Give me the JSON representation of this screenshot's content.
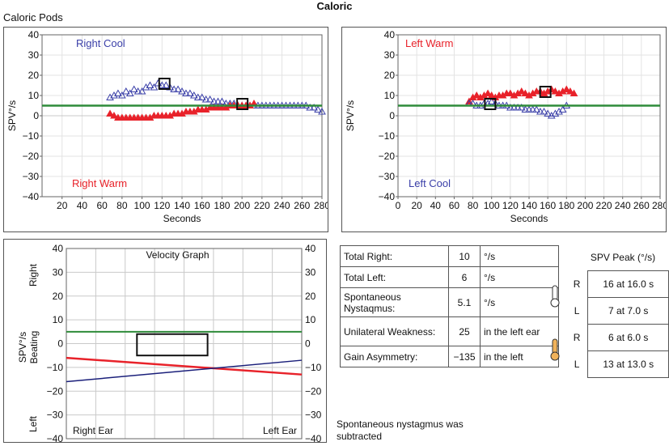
{
  "title": "Caloric",
  "section": "Caloric Pods",
  "colors": {
    "blue": "#3a3fa8",
    "red": "#e8222a",
    "green": "#2e8b3a",
    "navy": "#1a1f7a"
  },
  "chart_data": [
    {
      "type": "scatter",
      "name": "right-ear-tracing",
      "xlabel": "Seconds",
      "ylabel": "SPV°/s",
      "xlim": [
        0,
        280
      ],
      "ylim": [
        -40,
        40
      ],
      "xticks": [
        "20",
        "40",
        "60",
        "80",
        "100",
        "120",
        "140",
        "160",
        "180",
        "200",
        "220",
        "240",
        "260",
        "280"
      ],
      "yticks": [
        "40",
        "30",
        "20",
        "10",
        "0",
        "−10",
        "−20",
        "−30",
        "−40"
      ],
      "threshold": 5,
      "series": [
        {
          "name": "Right Cool",
          "color": "#3a3fa8",
          "marker": "triangle-open",
          "x": [
            68,
            72,
            76,
            80,
            84,
            88,
            92,
            96,
            100,
            104,
            108,
            112,
            116,
            120,
            124,
            128,
            132,
            136,
            140,
            144,
            148,
            152,
            156,
            160,
            164,
            168,
            172,
            176,
            180,
            184,
            188,
            192,
            196,
            200,
            204,
            208,
            212,
            216,
            220,
            224,
            228,
            232,
            236,
            240,
            244,
            248,
            252,
            256,
            260,
            264,
            268,
            272,
            276,
            280
          ],
          "y": [
            9,
            10,
            11,
            10,
            12,
            11,
            13,
            12,
            12,
            14,
            15,
            14,
            16,
            15,
            15,
            14,
            13,
            13,
            12,
            11,
            11,
            10,
            9,
            9,
            8,
            8,
            7,
            7,
            7,
            6,
            6,
            6,
            5,
            5,
            5,
            5,
            5,
            5,
            5,
            5,
            5,
            5,
            5,
            5,
            5,
            5,
            5,
            5,
            5,
            5,
            4,
            4,
            3,
            2
          ]
        },
        {
          "name": "Right Warm",
          "color": "#e8222a",
          "marker": "triangle-filled",
          "x": [
            68,
            72,
            76,
            80,
            84,
            88,
            92,
            96,
            100,
            104,
            108,
            112,
            116,
            120,
            124,
            128,
            132,
            136,
            140,
            144,
            148,
            152,
            156,
            160,
            164,
            168,
            172,
            176,
            180,
            184,
            188,
            192,
            196,
            200,
            204,
            208,
            212
          ],
          "y": [
            1,
            0,
            -1,
            -1,
            -1,
            -1,
            -1,
            -1,
            -1,
            -1,
            -1,
            0,
            0,
            0,
            0,
            0,
            1,
            1,
            1,
            2,
            2,
            2,
            3,
            3,
            3,
            4,
            4,
            4,
            4,
            4,
            5,
            5,
            5,
            5,
            5,
            5,
            6
          ]
        }
      ],
      "peak_boxes": [
        {
          "x": 122,
          "y": 16
        },
        {
          "x": 200,
          "y": 6
        }
      ],
      "labels": {
        "top": "Right Cool",
        "bottom": "Right Warm"
      }
    },
    {
      "type": "scatter",
      "name": "left-ear-tracing",
      "xlabel": "Seconds",
      "ylabel": "SPV°/s",
      "xlim": [
        0,
        280
      ],
      "ylim": [
        -40,
        40
      ],
      "xticks": [
        "0",
        "20",
        "40",
        "60",
        "80",
        "100",
        "120",
        "140",
        "160",
        "180",
        "200",
        "220",
        "240",
        "260",
        "280"
      ],
      "yticks": [
        "40",
        "30",
        "20",
        "10",
        "0",
        "−10",
        "−20",
        "−30",
        "−40"
      ],
      "threshold": 5,
      "series": [
        {
          "name": "Left Warm",
          "color": "#e8222a",
          "marker": "triangle-filled",
          "x": [
            76,
            80,
            84,
            88,
            92,
            96,
            100,
            104,
            108,
            112,
            116,
            120,
            124,
            128,
            132,
            136,
            140,
            144,
            148,
            152,
            156,
            160,
            164,
            168,
            172,
            176,
            180,
            184,
            188
          ],
          "y": [
            7,
            9,
            10,
            9,
            10,
            11,
            10,
            9,
            10,
            10,
            11,
            11,
            10,
            11,
            12,
            11,
            10,
            11,
            12,
            12,
            11,
            12,
            13,
            12,
            11,
            12,
            13,
            12,
            11
          ]
        },
        {
          "name": "Left Cool",
          "color": "#3a3fa8",
          "marker": "triangle-open",
          "x": [
            76,
            80,
            84,
            88,
            92,
            96,
            100,
            104,
            108,
            112,
            116,
            120,
            124,
            128,
            132,
            136,
            140,
            144,
            148,
            152,
            156,
            160,
            164,
            168,
            172,
            176,
            180
          ],
          "y": [
            6,
            6,
            5,
            5,
            6,
            6,
            7,
            6,
            5,
            5,
            5,
            4,
            4,
            4,
            4,
            3,
            3,
            3,
            3,
            2,
            2,
            1,
            0,
            1,
            2,
            3,
            5
          ]
        }
      ],
      "peak_boxes": [
        {
          "x": 98,
          "y": 6
        },
        {
          "x": 157,
          "y": 12
        }
      ],
      "labels": {
        "top": "Left Warm",
        "bottom": "Left Cool"
      }
    },
    {
      "type": "line",
      "name": "velocity-graph",
      "title": "Velocity Graph",
      "ylabel": "SPV°/s Beating",
      "side_top": "Right",
      "side_bottom": "Left",
      "ylim": [
        -40,
        40
      ],
      "yticks": [
        "40",
        "30",
        "20",
        "10",
        "0",
        "−10",
        "−20",
        "−30",
        "−40"
      ],
      "xlabel_left": "Right Ear",
      "xlabel_right": "Left Ear",
      "threshold": 5,
      "box": {
        "x0": 0.3,
        "x1": 0.6,
        "y0": -5,
        "y1": 4
      },
      "series": [
        {
          "name": "red",
          "color": "#e8222a",
          "y_start": -6,
          "y_end": -13
        },
        {
          "name": "blue",
          "color": "#1a1f7a",
          "y_start": -16,
          "y_end": -7
        }
      ]
    }
  ],
  "results": [
    {
      "label": "Total Right:",
      "value": "10",
      "unit": "°/s"
    },
    {
      "label": "Total Left:",
      "value": "6",
      "unit": "°/s"
    },
    {
      "label": "Spontaneous Nystaqmus:",
      "value": "5.1",
      "unit": "°/s"
    },
    {
      "label": "Unilateral Weakness:",
      "value": "25",
      "unit": "in the left ear"
    },
    {
      "label": "Gain Asymmetry:",
      "value": "−135",
      "unit": "in the left"
    }
  ],
  "peak_table": {
    "title": "SPV Peak (°/s)",
    "rows": [
      {
        "side": "R",
        "value": "16 at 16.0 s",
        "icon": "cold-thermometer-icon"
      },
      {
        "side": "L",
        "value": "7 at 7.0 s",
        "icon": "cold-thermometer-icon"
      },
      {
        "side": "R",
        "value": "6 at 6.0 s",
        "icon": "warm-thermometer-icon"
      },
      {
        "side": "L",
        "value": "13 at 13.0 s",
        "icon": "warm-thermometer-icon"
      }
    ]
  },
  "note": "Spontaneous nystagmus was subtracted"
}
